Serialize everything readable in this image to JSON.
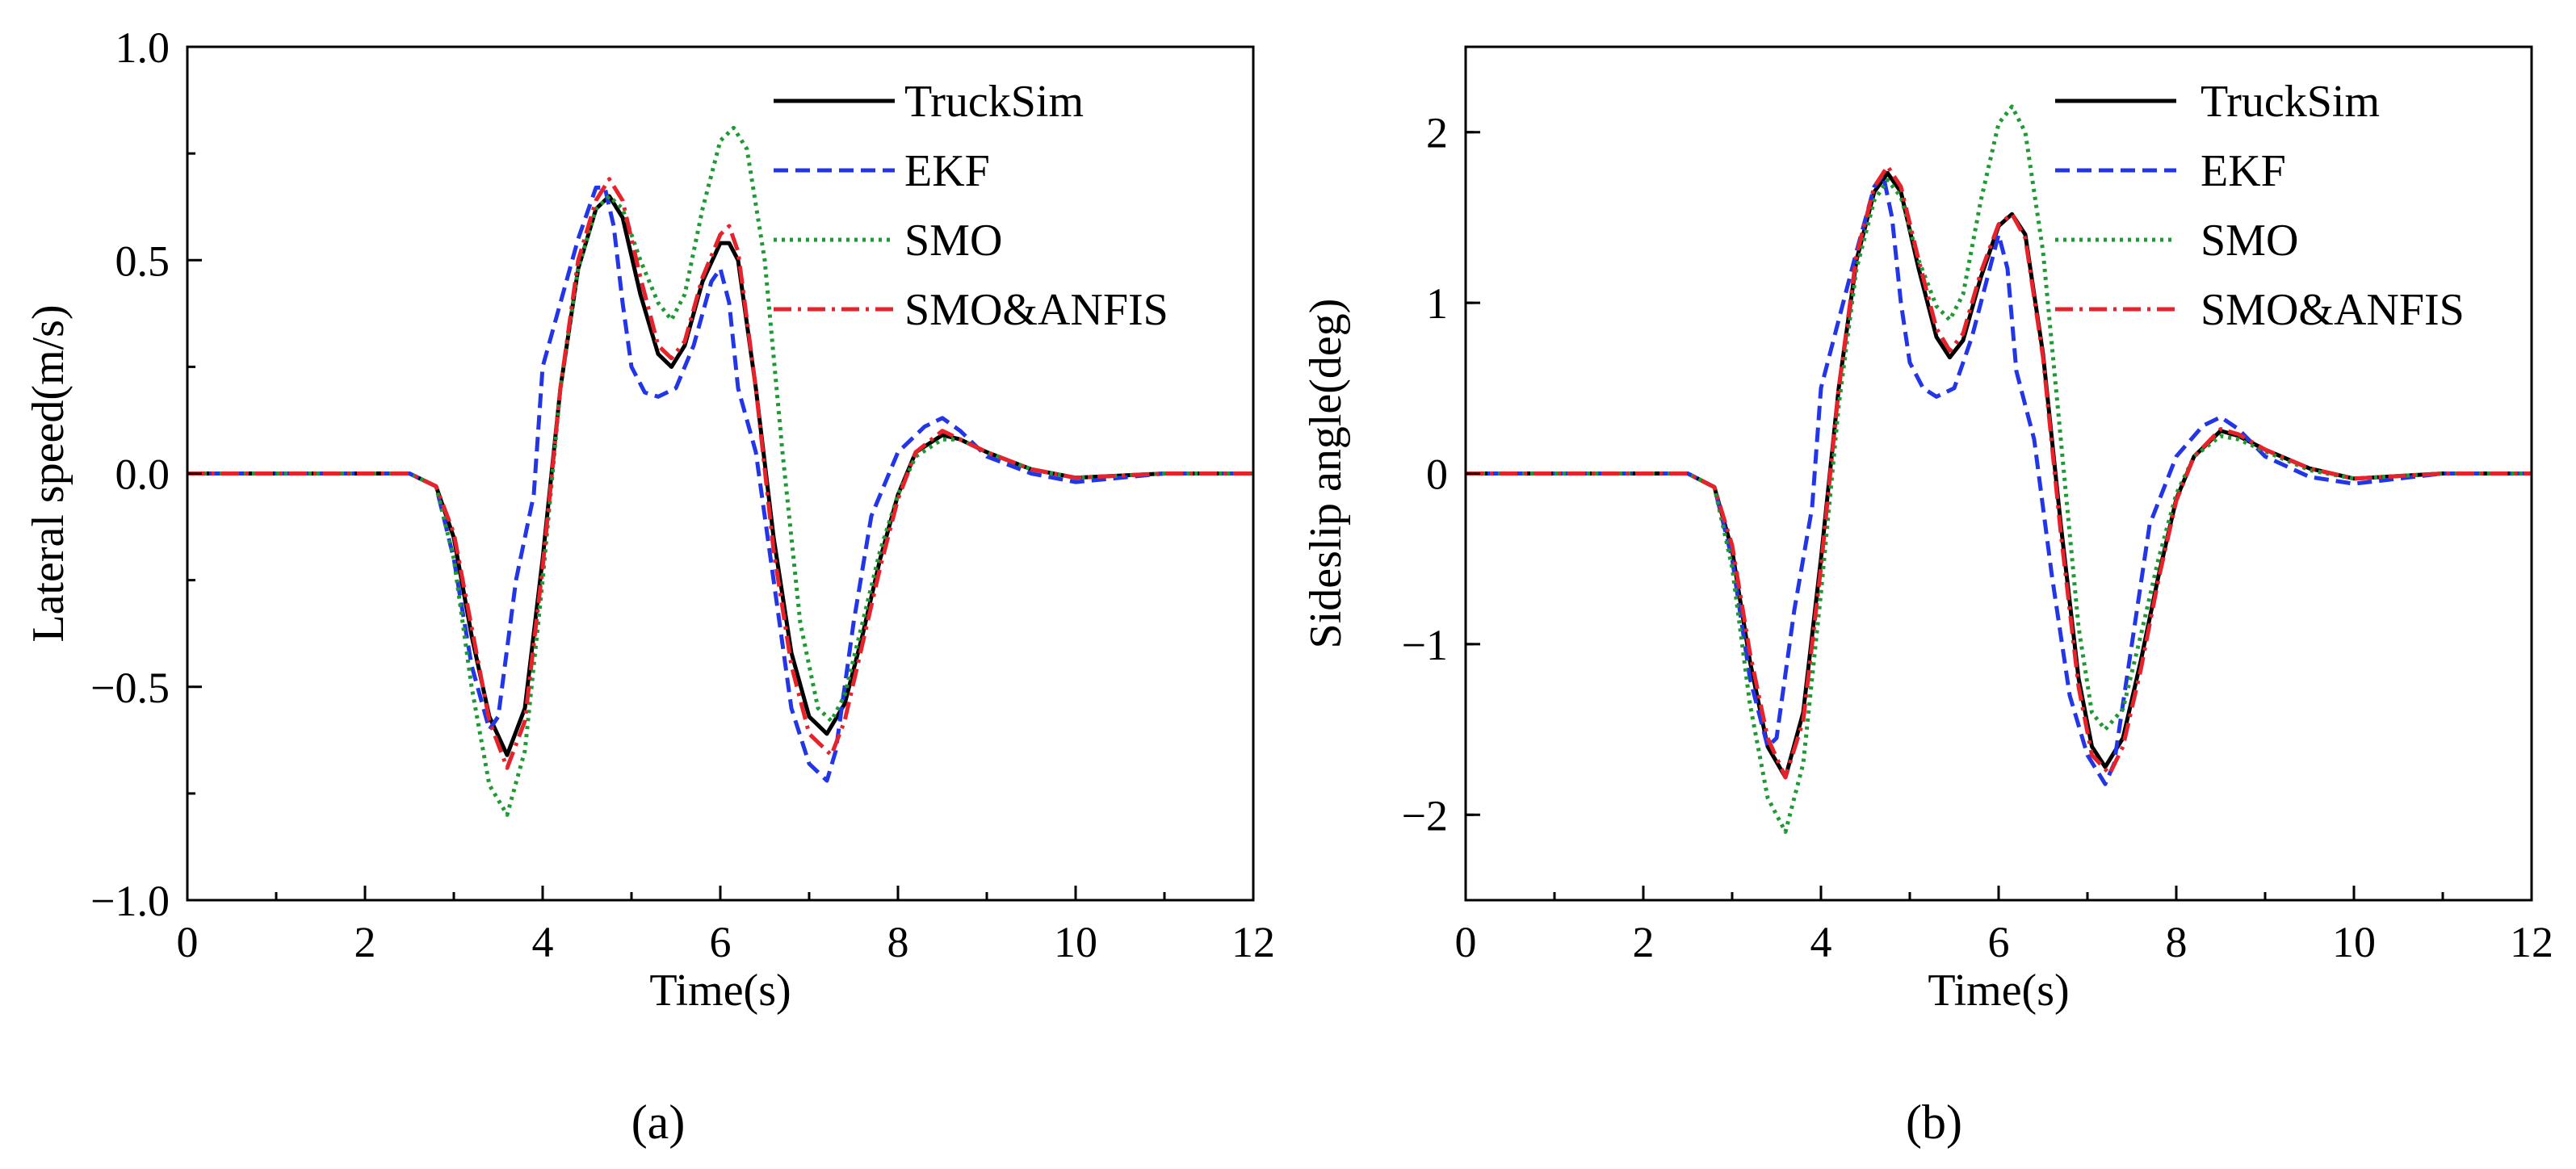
{
  "figure": {
    "captions": [
      "(a)",
      "(b)"
    ]
  },
  "chart_data": [
    {
      "type": "line",
      "id": "a",
      "caption": "(a)",
      "xlabel": "Time(s)",
      "ylabel": "Lateral speed(m/s)",
      "xlim": [
        0,
        12
      ],
      "ylim": [
        -1.0,
        1.0
      ],
      "xticks": [
        0,
        2,
        4,
        6,
        8,
        10,
        12
      ],
      "xtick_labels": [
        "0",
        "2",
        "4",
        "6",
        "8",
        "10",
        "12"
      ],
      "yticks": [
        -1.0,
        -0.5,
        0.0,
        0.5,
        1.0
      ],
      "ytick_labels": [
        "−1.0",
        "−0.5",
        "0.0",
        "0.5",
        "1.0"
      ],
      "legend_position": "top-right",
      "grid": false,
      "series": [
        {
          "name": "TruckSim",
          "color": "#000000",
          "dash": "solid",
          "x": [
            0,
            1,
            2,
            2.5,
            2.8,
            3.0,
            3.2,
            3.4,
            3.6,
            3.8,
            4.0,
            4.2,
            4.4,
            4.6,
            4.75,
            4.9,
            5.1,
            5.3,
            5.45,
            5.6,
            5.8,
            6.0,
            6.1,
            6.2,
            6.4,
            6.6,
            6.8,
            7.0,
            7.2,
            7.4,
            7.6,
            7.8,
            8.0,
            8.2,
            8.5,
            8.7,
            9.0,
            9.5,
            10,
            11,
            12
          ],
          "y": [
            0,
            0,
            0,
            0,
            -0.03,
            -0.15,
            -0.38,
            -0.57,
            -0.66,
            -0.55,
            -0.2,
            0.2,
            0.48,
            0.62,
            0.65,
            0.6,
            0.42,
            0.28,
            0.25,
            0.3,
            0.45,
            0.54,
            0.54,
            0.5,
            0.2,
            -0.15,
            -0.42,
            -0.57,
            -0.61,
            -0.54,
            -0.38,
            -0.2,
            -0.05,
            0.05,
            0.09,
            0.08,
            0.05,
            0.01,
            -0.01,
            0,
            0
          ]
        },
        {
          "name": "EKF",
          "color": "#2236e8",
          "dash": "dashed",
          "x": [
            0,
            1,
            2,
            2.5,
            2.8,
            3.0,
            3.2,
            3.4,
            3.5,
            3.7,
            3.9,
            4.0,
            4.2,
            4.4,
            4.6,
            4.7,
            4.8,
            4.9,
            5.0,
            5.15,
            5.3,
            5.5,
            5.7,
            5.9,
            6.0,
            6.1,
            6.2,
            6.4,
            6.6,
            6.8,
            7.0,
            7.2,
            7.3,
            7.5,
            7.7,
            8.0,
            8.3,
            8.5,
            8.7,
            9.0,
            9.5,
            10,
            11,
            12
          ],
          "y": [
            0,
            0,
            0,
            0,
            -0.03,
            -0.2,
            -0.45,
            -0.6,
            -0.57,
            -0.25,
            -0.05,
            0.25,
            0.4,
            0.55,
            0.67,
            0.67,
            0.58,
            0.4,
            0.25,
            0.19,
            0.18,
            0.2,
            0.3,
            0.45,
            0.48,
            0.4,
            0.2,
            0.05,
            -0.25,
            -0.55,
            -0.68,
            -0.72,
            -0.65,
            -0.35,
            -0.1,
            0.05,
            0.11,
            0.13,
            0.1,
            0.04,
            0.0,
            -0.02,
            0,
            0
          ]
        },
        {
          "name": "SMO",
          "color": "#1f9a32",
          "dash": "dotted",
          "x": [
            0,
            1,
            2,
            2.5,
            2.8,
            3.0,
            3.2,
            3.4,
            3.6,
            3.8,
            4.0,
            4.2,
            4.4,
            4.6,
            4.75,
            4.9,
            5.1,
            5.3,
            5.45,
            5.6,
            5.8,
            6.0,
            6.15,
            6.3,
            6.5,
            6.7,
            6.9,
            7.1,
            7.25,
            7.4,
            7.6,
            7.8,
            8.0,
            8.2,
            8.5,
            8.7,
            9.0,
            9.5,
            10,
            11,
            12
          ],
          "y": [
            0,
            0,
            0,
            0,
            -0.03,
            -0.2,
            -0.5,
            -0.73,
            -0.8,
            -0.65,
            -0.25,
            0.2,
            0.48,
            0.62,
            0.65,
            0.62,
            0.5,
            0.4,
            0.36,
            0.42,
            0.62,
            0.78,
            0.81,
            0.76,
            0.5,
            0.05,
            -0.35,
            -0.55,
            -0.58,
            -0.52,
            -0.35,
            -0.18,
            -0.05,
            0.04,
            0.08,
            0.08,
            0.05,
            0.01,
            -0.01,
            0,
            0
          ]
        },
        {
          "name": "SMO&ANFIS",
          "color": "#e8222a",
          "dash": "dashdot",
          "x": [
            0,
            1,
            2,
            2.5,
            2.8,
            3.0,
            3.2,
            3.4,
            3.6,
            3.8,
            4.0,
            4.2,
            4.4,
            4.6,
            4.75,
            4.9,
            5.1,
            5.3,
            5.45,
            5.6,
            5.8,
            6.0,
            6.1,
            6.2,
            6.4,
            6.6,
            6.8,
            7.0,
            7.25,
            7.4,
            7.6,
            7.8,
            8.0,
            8.2,
            8.5,
            8.7,
            9.0,
            9.5,
            10,
            11,
            12
          ],
          "y": [
            0,
            0,
            0,
            0,
            -0.03,
            -0.14,
            -0.36,
            -0.58,
            -0.69,
            -0.58,
            -0.22,
            0.2,
            0.5,
            0.64,
            0.69,
            0.64,
            0.46,
            0.3,
            0.27,
            0.31,
            0.46,
            0.56,
            0.58,
            0.52,
            0.2,
            -0.18,
            -0.45,
            -0.61,
            -0.66,
            -0.58,
            -0.4,
            -0.22,
            -0.06,
            0.05,
            0.1,
            0.08,
            0.05,
            0.01,
            -0.01,
            0,
            0
          ]
        }
      ]
    },
    {
      "type": "line",
      "id": "b",
      "caption": "(b)",
      "xlabel": "Time(s)",
      "ylabel": "Sideslip angle(deg)",
      "xlim": [
        0,
        12
      ],
      "ylim": [
        -2.5,
        2.5
      ],
      "xticks": [
        0,
        2,
        4,
        6,
        8,
        10,
        12
      ],
      "xtick_labels": [
        "0",
        "2",
        "4",
        "6",
        "8",
        "10",
        "12"
      ],
      "yticks": [
        -2,
        -1,
        0,
        1,
        2
      ],
      "ytick_labels": [
        "−2",
        "−1",
        "0",
        "1",
        "2"
      ],
      "legend_position": "top-right",
      "grid": false,
      "series": [
        {
          "name": "TruckSim",
          "color": "#000000",
          "dash": "solid",
          "x": [
            0,
            1,
            2,
            2.5,
            2.8,
            3.0,
            3.2,
            3.4,
            3.6,
            3.8,
            4.0,
            4.2,
            4.4,
            4.6,
            4.75,
            4.9,
            5.1,
            5.3,
            5.45,
            5.6,
            5.8,
            6.0,
            6.15,
            6.3,
            6.5,
            6.7,
            6.9,
            7.05,
            7.2,
            7.4,
            7.6,
            7.8,
            8.0,
            8.2,
            8.5,
            8.7,
            9.0,
            9.5,
            10,
            11,
            12
          ],
          "y": [
            0,
            0,
            0,
            0,
            -0.08,
            -0.45,
            -1.1,
            -1.6,
            -1.78,
            -1.4,
            -0.5,
            0.5,
            1.25,
            1.65,
            1.76,
            1.65,
            1.2,
            0.8,
            0.68,
            0.78,
            1.15,
            1.45,
            1.52,
            1.4,
            0.7,
            -0.3,
            -1.2,
            -1.6,
            -1.72,
            -1.55,
            -1.1,
            -0.6,
            -0.15,
            0.1,
            0.25,
            0.22,
            0.14,
            0.03,
            -0.03,
            0,
            0
          ]
        },
        {
          "name": "EKF",
          "color": "#2236e8",
          "dash": "dashed",
          "x": [
            0,
            1,
            2,
            2.5,
            2.8,
            3.0,
            3.2,
            3.4,
            3.5,
            3.7,
            3.9,
            4.0,
            4.2,
            4.4,
            4.6,
            4.7,
            4.8,
            4.9,
            5.0,
            5.15,
            5.3,
            5.5,
            5.7,
            5.9,
            6.0,
            6.1,
            6.2,
            6.4,
            6.6,
            6.8,
            7.0,
            7.2,
            7.3,
            7.5,
            7.7,
            8.0,
            8.3,
            8.5,
            8.7,
            9.0,
            9.5,
            10,
            11,
            12
          ],
          "y": [
            0,
            0,
            0,
            0,
            -0.08,
            -0.5,
            -1.2,
            -1.6,
            -1.55,
            -0.8,
            -0.2,
            0.5,
            0.9,
            1.3,
            1.68,
            1.75,
            1.5,
            1.0,
            0.65,
            0.5,
            0.45,
            0.5,
            0.8,
            1.2,
            1.4,
            1.2,
            0.6,
            0.2,
            -0.6,
            -1.3,
            -1.65,
            -1.82,
            -1.7,
            -1.0,
            -0.3,
            0.1,
            0.28,
            0.33,
            0.26,
            0.1,
            -0.02,
            -0.06,
            0,
            0
          ]
        },
        {
          "name": "SMO",
          "color": "#1f9a32",
          "dash": "dotted",
          "x": [
            0,
            1,
            2,
            2.5,
            2.8,
            3.0,
            3.2,
            3.4,
            3.6,
            3.8,
            4.0,
            4.2,
            4.4,
            4.6,
            4.75,
            4.9,
            5.1,
            5.3,
            5.45,
            5.6,
            5.8,
            6.0,
            6.15,
            6.3,
            6.5,
            6.7,
            6.9,
            7.05,
            7.2,
            7.4,
            7.6,
            7.8,
            8.0,
            8.2,
            8.5,
            8.7,
            9.0,
            9.5,
            10,
            11,
            12
          ],
          "y": [
            0,
            0,
            0,
            0,
            -0.08,
            -0.55,
            -1.35,
            -1.9,
            -2.1,
            -1.7,
            -0.7,
            0.4,
            1.2,
            1.6,
            1.72,
            1.62,
            1.25,
            0.98,
            0.9,
            1.05,
            1.6,
            2.05,
            2.15,
            2.0,
            1.3,
            0.2,
            -0.9,
            -1.4,
            -1.5,
            -1.38,
            -0.95,
            -0.5,
            -0.12,
            0.1,
            0.22,
            0.2,
            0.13,
            0.02,
            -0.03,
            0,
            0
          ]
        },
        {
          "name": "SMO&ANFIS",
          "color": "#e8222a",
          "dash": "dashdot",
          "x": [
            0,
            1,
            2,
            2.5,
            2.8,
            3.0,
            3.2,
            3.4,
            3.6,
            3.8,
            4.0,
            4.2,
            4.4,
            4.6,
            4.75,
            4.9,
            5.1,
            5.3,
            5.45,
            5.6,
            5.8,
            6.0,
            6.15,
            6.3,
            6.5,
            6.7,
            6.9,
            7.05,
            7.25,
            7.4,
            7.6,
            7.8,
            8.0,
            8.2,
            8.5,
            8.7,
            9.0,
            9.5,
            10,
            11,
            12
          ],
          "y": [
            0,
            0,
            0,
            0,
            -0.08,
            -0.42,
            -1.05,
            -1.55,
            -1.78,
            -1.45,
            -0.55,
            0.5,
            1.28,
            1.68,
            1.8,
            1.68,
            1.25,
            0.85,
            0.72,
            0.82,
            1.18,
            1.46,
            1.52,
            1.38,
            0.68,
            -0.35,
            -1.25,
            -1.65,
            -1.76,
            -1.6,
            -1.15,
            -0.62,
            -0.16,
            0.1,
            0.26,
            0.23,
            0.14,
            0.03,
            -0.03,
            0,
            0
          ]
        }
      ]
    }
  ]
}
